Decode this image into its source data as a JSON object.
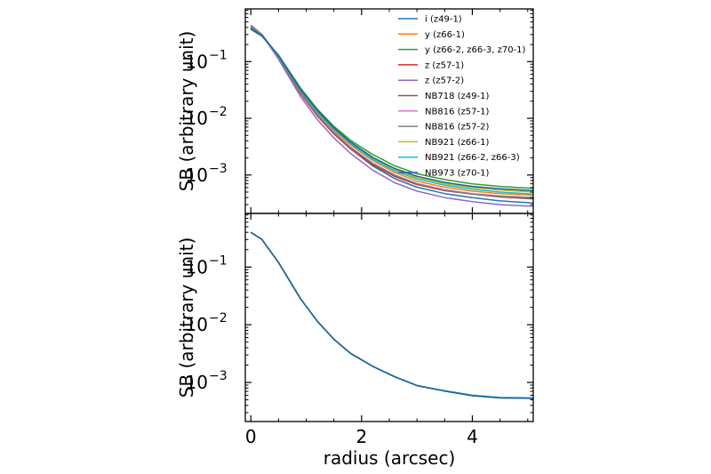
{
  "chart_data": [
    {
      "type": "line",
      "panel": "top",
      "ylabel": "SB (arbitrary unit)",
      "xlabel": "",
      "yscale": "log",
      "xlim": [
        -0.1,
        5.1
      ],
      "ylim": [
        0.00021,
        0.85
      ],
      "yticks": [
        0.1,
        0.01,
        0.001
      ],
      "ytick_labels": [
        "10",
        "10",
        "10"
      ],
      "ytick_exponents": [
        "−1",
        "−2",
        "−3"
      ],
      "xticks": [
        0,
        2,
        4
      ],
      "legend_position": "top-right",
      "x": [
        0,
        0.2,
        0.5,
        0.9,
        1.2,
        1.5,
        1.8,
        2.2,
        2.6,
        3.0,
        3.5,
        4.0,
        4.5,
        5.1
      ],
      "series": [
        {
          "name": "i (z49-1)",
          "color": "#1f77b4",
          "values": [
            0.42,
            0.3,
            0.12,
            0.028,
            0.0113,
            0.0054,
            0.0029,
            0.00145,
            0.00086,
            0.00061,
            0.00047,
            0.0004,
            0.00035,
            0.00032
          ]
        },
        {
          "name": "y (z66-1)",
          "color": "#ff7f0e",
          "values": [
            0.39,
            0.29,
            0.125,
            0.03,
            0.0125,
            0.0061,
            0.0034,
            0.0018,
            0.0011,
            0.00078,
            0.00061,
            0.00052,
            0.00047,
            0.00044
          ]
        },
        {
          "name": "y (z66-2, z66-3, z70-1)",
          "color": "#2ca02c",
          "values": [
            0.37,
            0.28,
            0.13,
            0.034,
            0.0145,
            0.0072,
            0.0041,
            0.0023,
            0.00145,
            0.00105,
            0.00083,
            0.0007,
            0.00063,
            0.00058
          ]
        },
        {
          "name": "z (z57-1)",
          "color": "#d62728",
          "values": [
            0.4,
            0.3,
            0.12,
            0.027,
            0.011,
            0.0053,
            0.0029,
            0.00152,
            0.00094,
            0.00068,
            0.00053,
            0.00046,
            0.00042,
            0.0004
          ]
        },
        {
          "name": "z (z57-2)",
          "color": "#9467bd",
          "values": [
            0.44,
            0.3,
            0.11,
            0.024,
            0.0095,
            0.0045,
            0.0024,
            0.00122,
            0.00073,
            0.00052,
            0.0004,
            0.00034,
            0.0003,
            0.00028
          ]
        },
        {
          "name": "NB718 (z49-1)",
          "color": "#8c564b",
          "values": [
            0.41,
            0.3,
            0.12,
            0.028,
            0.0114,
            0.0055,
            0.003,
            0.0016,
            0.00098,
            0.0007,
            0.00054,
            0.00046,
            0.00041,
            0.00038
          ]
        },
        {
          "name": "NB816 (z57-1)",
          "color": "#e377c2",
          "values": [
            0.4,
            0.3,
            0.121,
            0.0285,
            0.0117,
            0.0057,
            0.0031,
            0.00162,
            0.001,
            0.00071,
            0.00055,
            0.00047,
            0.00043,
            0.0004
          ]
        },
        {
          "name": "NB816 (z57-2)",
          "color": "#7f7f7f",
          "values": [
            0.4,
            0.3,
            0.121,
            0.0283,
            0.0116,
            0.0056,
            0.00305,
            0.0016,
            0.00099,
            0.0007,
            0.00054,
            0.00046,
            0.00042,
            0.0004
          ]
        },
        {
          "name": "NB921 (z66-1)",
          "color": "#bcbd22",
          "values": [
            0.38,
            0.29,
            0.127,
            0.032,
            0.0135,
            0.0066,
            0.0037,
            0.002,
            0.00125,
            0.0009,
            0.0007,
            0.0006,
            0.00054,
            0.0005
          ]
        },
        {
          "name": "NB921 (z66-2, z66-3)",
          "color": "#17becf",
          "values": [
            0.39,
            0.29,
            0.125,
            0.031,
            0.013,
            0.0064,
            0.0036,
            0.0019,
            0.00118,
            0.00085,
            0.00066,
            0.00056,
            0.0005,
            0.00046
          ]
        },
        {
          "name": "NB973 (z70-1)",
          "color": "#1f5fa0",
          "values": [
            0.38,
            0.29,
            0.128,
            0.032,
            0.0138,
            0.0068,
            0.0038,
            0.00205,
            0.0013,
            0.00095,
            0.00074,
            0.00063,
            0.00057,
            0.00053
          ]
        }
      ]
    },
    {
      "type": "line",
      "panel": "bottom",
      "ylabel": "SB (arbitrary unit)",
      "xlabel": "radius (arcsec)",
      "yscale": "log",
      "xlim": [
        -0.1,
        5.1
      ],
      "ylim": [
        0.00021,
        0.85
      ],
      "yticks": [
        0.1,
        0.01,
        0.001
      ],
      "ytick_labels": [
        "10",
        "10",
        "10"
      ],
      "ytick_exponents": [
        "−1",
        "−2",
        "−3"
      ],
      "xticks": [
        0,
        2,
        4
      ],
      "xtick_labels": [
        "0",
        "2",
        "4"
      ],
      "x": [
        0,
        0.2,
        0.5,
        0.9,
        1.2,
        1.5,
        1.8,
        2.2,
        2.6,
        3.0,
        3.5,
        4.0,
        4.5,
        5.1
      ],
      "series": [
        {
          "color": "#1f77b4",
          "values": [
            0.4,
            0.3,
            0.12,
            0.028,
            0.0115,
            0.0056,
            0.0032,
            0.0019,
            0.00125,
            0.00088,
            0.00071,
            0.00059,
            0.00054,
            0.00053
          ]
        },
        {
          "color": "#ff7f0e",
          "values": [
            0.4,
            0.3,
            0.12,
            0.028,
            0.0115,
            0.0056,
            0.0032,
            0.0019,
            0.00125,
            0.00088,
            0.00071,
            0.00059,
            0.00054,
            0.00053
          ]
        },
        {
          "color": "#2ca02c",
          "values": [
            0.4,
            0.3,
            0.12,
            0.028,
            0.0115,
            0.0056,
            0.0032,
            0.0019,
            0.00125,
            0.00088,
            0.00071,
            0.00059,
            0.00054,
            0.00053
          ]
        },
        {
          "color": "#17becf",
          "values": [
            0.4,
            0.3,
            0.12,
            0.028,
            0.0116,
            0.0056,
            0.0032,
            0.00191,
            0.00126,
            0.00089,
            0.00072,
            0.0006,
            0.00055,
            0.00054
          ]
        },
        {
          "color": "#1f5fa0",
          "values": [
            0.4,
            0.3,
            0.12,
            0.028,
            0.0115,
            0.0056,
            0.0032,
            0.0019,
            0.00125,
            0.00088,
            0.00071,
            0.00059,
            0.00054,
            0.00053
          ]
        }
      ]
    }
  ]
}
